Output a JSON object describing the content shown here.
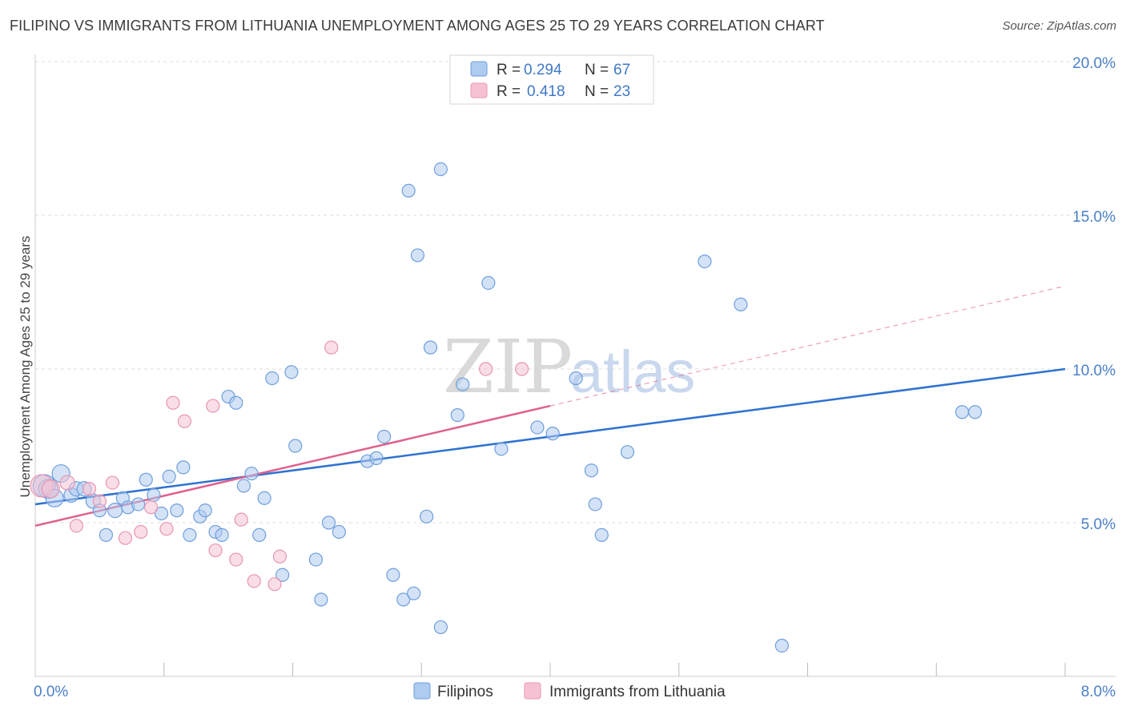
{
  "title": "FILIPINO VS IMMIGRANTS FROM LITHUANIA UNEMPLOYMENT AMONG AGES 25 TO 29 YEARS CORRELATION CHART",
  "source": "Source: ZipAtlas.com",
  "watermark": {
    "zip": "ZIP",
    "atlas": "atlas"
  },
  "colors": {
    "blue_fill": "#aecbf0",
    "blue_stroke": "#6e9fdc",
    "blue_line": "#2f72d0",
    "pink_fill": "#f6c2d3",
    "pink_stroke": "#e895b0",
    "pink_line": "#e0608c",
    "tick_text": "#4a7fc8",
    "grid": "#dddddd"
  },
  "legend": {
    "rows": [
      {
        "r_label": "R =",
        "r_value": "0.294",
        "n_label": "N =",
        "n_value": "67"
      },
      {
        "r_label": "R =",
        "r_value": "0.418",
        "n_label": "N =",
        "n_value": "23"
      }
    ]
  },
  "bottom_legend": {
    "series1": "Filipinos",
    "series2": "Immigrants from Lithuania"
  },
  "chart_data": {
    "type": "scatter",
    "title": "FILIPINO VS IMMIGRANTS FROM LITHUANIA UNEMPLOYMENT AMONG AGES 25 TO 29 YEARS CORRELATION CHART",
    "xlabel": "",
    "ylabel": "Unemployment Among Ages 25 to 29 years",
    "xlim": [
      0.0,
      8.0
    ],
    "ylim": [
      0.0,
      20.0
    ],
    "x_tick_labels": [
      "0.0%",
      "8.0%"
    ],
    "y_ticks": [
      5.0,
      10.0,
      15.0,
      20.0
    ],
    "y_tick_labels": [
      "5.0%",
      "10.0%",
      "15.0%",
      "20.0%"
    ],
    "grid": true,
    "series": [
      {
        "name": "Filipinos",
        "trendline": {
          "x": [
            0.0,
            8.0
          ],
          "y": [
            5.6,
            10.0
          ]
        },
        "points": [
          [
            0.07,
            6.2,
            14
          ],
          [
            0.1,
            6.1,
            12
          ],
          [
            0.15,
            5.8,
            11
          ],
          [
            0.2,
            6.6,
            11
          ],
          [
            0.28,
            5.9,
            9
          ],
          [
            0.32,
            6.1,
            9
          ],
          [
            0.38,
            6.1,
            9
          ],
          [
            0.45,
            5.7,
            9
          ],
          [
            0.5,
            5.4,
            8
          ],
          [
            0.55,
            4.6,
            8
          ],
          [
            0.62,
            5.4,
            9
          ],
          [
            0.68,
            5.8,
            8
          ],
          [
            0.72,
            5.5,
            8
          ],
          [
            0.8,
            5.6,
            8
          ],
          [
            0.86,
            6.4,
            8
          ],
          [
            0.92,
            5.9,
            8
          ],
          [
            0.98,
            5.3,
            8
          ],
          [
            1.04,
            6.5,
            8
          ],
          [
            1.1,
            5.4,
            8
          ],
          [
            1.15,
            6.8,
            8
          ],
          [
            1.2,
            4.6,
            8
          ],
          [
            1.28,
            5.2,
            8
          ],
          [
            1.32,
            5.4,
            8
          ],
          [
            1.4,
            4.7,
            8
          ],
          [
            1.45,
            4.6,
            8
          ],
          [
            1.5,
            9.1,
            8
          ],
          [
            1.56,
            8.9,
            8
          ],
          [
            1.62,
            6.2,
            8
          ],
          [
            1.68,
            6.6,
            8
          ],
          [
            1.74,
            4.6,
            8
          ],
          [
            1.78,
            5.8,
            8
          ],
          [
            1.84,
            9.7,
            8
          ],
          [
            1.92,
            3.3,
            8
          ],
          [
            1.99,
            9.9,
            8
          ],
          [
            2.02,
            7.5,
            8
          ],
          [
            2.18,
            3.8,
            8
          ],
          [
            2.22,
            2.5,
            8
          ],
          [
            2.28,
            5.0,
            8
          ],
          [
            2.36,
            4.7,
            8
          ],
          [
            2.58,
            7.0,
            8
          ],
          [
            2.65,
            7.1,
            8
          ],
          [
            2.71,
            7.8,
            8
          ],
          [
            2.78,
            3.3,
            8
          ],
          [
            2.86,
            2.5,
            8
          ],
          [
            2.94,
            2.7,
            8
          ],
          [
            2.9,
            15.8,
            8
          ],
          [
            2.97,
            13.7,
            8
          ],
          [
            3.07,
            10.7,
            8
          ],
          [
            3.04,
            5.2,
            8
          ],
          [
            3.15,
            16.5,
            8
          ],
          [
            3.15,
            1.6,
            8
          ],
          [
            3.28,
            8.5,
            8
          ],
          [
            3.32,
            9.5,
            8
          ],
          [
            3.52,
            12.8,
            8
          ],
          [
            3.62,
            7.4,
            8
          ],
          [
            3.9,
            8.1,
            8
          ],
          [
            4.02,
            7.9,
            8
          ],
          [
            4.2,
            9.7,
            8
          ],
          [
            4.32,
            6.7,
            8
          ],
          [
            4.35,
            5.6,
            8
          ],
          [
            4.4,
            4.6,
            8
          ],
          [
            4.6,
            7.3,
            8
          ],
          [
            5.2,
            13.5,
            8
          ],
          [
            5.48,
            12.1,
            8
          ],
          [
            5.8,
            1.0,
            8
          ],
          [
            7.2,
            8.6,
            8
          ],
          [
            7.3,
            8.6,
            8
          ]
        ]
      },
      {
        "name": "Immigrants from Lithuania",
        "trendline": {
          "x": [
            0.0,
            4.0
          ],
          "y": [
            4.9,
            8.8
          ],
          "dashed_extension": {
            "x": [
              4.0,
              8.0
            ],
            "y": [
              8.8,
              12.7
            ]
          }
        },
        "points": [
          [
            0.05,
            6.2,
            14
          ],
          [
            0.12,
            6.1,
            11
          ],
          [
            0.25,
            6.3,
            9
          ],
          [
            0.32,
            4.9,
            8
          ],
          [
            0.42,
            6.1,
            8
          ],
          [
            0.5,
            5.7,
            8
          ],
          [
            0.6,
            6.3,
            8
          ],
          [
            0.7,
            4.5,
            8
          ],
          [
            0.82,
            4.7,
            8
          ],
          [
            0.9,
            5.5,
            8
          ],
          [
            1.02,
            4.8,
            8
          ],
          [
            1.07,
            8.9,
            8
          ],
          [
            1.16,
            8.3,
            8
          ],
          [
            1.38,
            8.8,
            8
          ],
          [
            1.4,
            4.1,
            8
          ],
          [
            1.56,
            3.8,
            8
          ],
          [
            1.6,
            5.1,
            8
          ],
          [
            1.7,
            3.1,
            8
          ],
          [
            1.86,
            3.0,
            8
          ],
          [
            1.9,
            3.9,
            8
          ],
          [
            2.3,
            10.7,
            8
          ],
          [
            3.5,
            10.0,
            8
          ],
          [
            3.78,
            10.0,
            8
          ]
        ]
      }
    ]
  }
}
